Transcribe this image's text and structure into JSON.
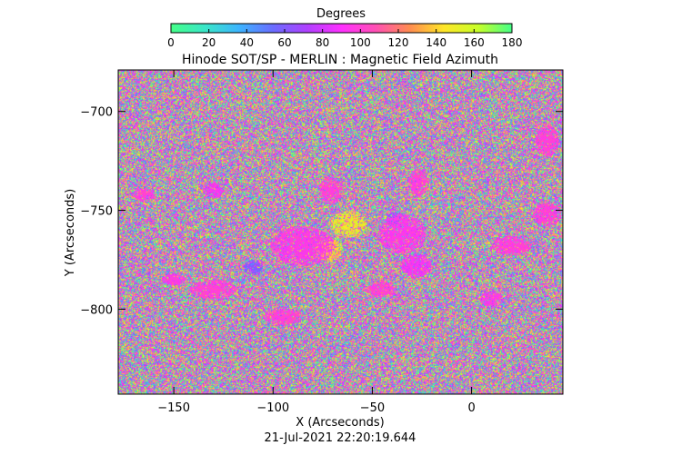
{
  "chart_data": {
    "type": "heatmap",
    "title": "Hinode SOT/SP - MERLIN : Magnetic Field Azimuth",
    "xlabel": "X (Arcseconds)",
    "ylabel": "Y (Arcseconds)",
    "timestamp": "21-Jul-2021 22:20:19.644",
    "x_range": [
      -178,
      46
    ],
    "y_range": [
      -843,
      -679
    ],
    "x_ticks": [
      -150,
      -100,
      -50,
      0
    ],
    "x_tick_labels": [
      "−150",
      "−100",
      "−50",
      "0"
    ],
    "y_ticks": [
      -700,
      -750,
      -800
    ],
    "y_tick_labels": [
      "−700",
      "−750",
      "−800"
    ],
    "colorbar": {
      "label": "Degrees",
      "range": [
        0,
        180
      ],
      "ticks": [
        0,
        20,
        40,
        60,
        80,
        100,
        120,
        140,
        160,
        180
      ],
      "tick_labels": [
        "0",
        "20",
        "40",
        "60",
        "80",
        "100",
        "120",
        "140",
        "160",
        "180"
      ],
      "colormap_stops": [
        "#44ff88",
        "#3ae6c8",
        "#3cb4ff",
        "#6a6cff",
        "#b040ff",
        "#ff30ff",
        "#ff50b4",
        "#ff8c50",
        "#ffe628",
        "#c8ff28",
        "#44ff88"
      ]
    },
    "grid": false
  }
}
